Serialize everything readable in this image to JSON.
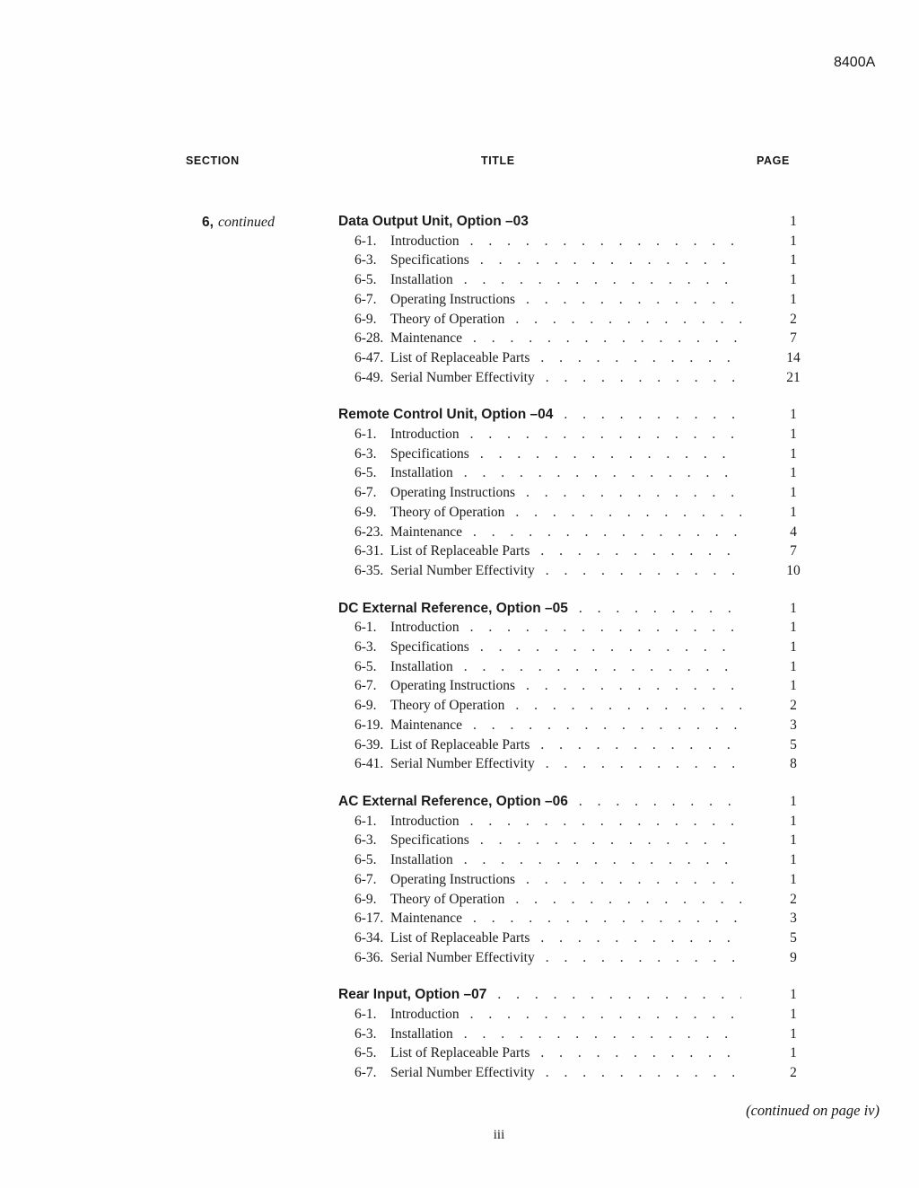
{
  "doc_number": "8400A",
  "headers": {
    "section": "SECTION",
    "title": "TITLE",
    "page": "PAGE"
  },
  "section_label": {
    "number": "6,",
    "note": "continued"
  },
  "blocks": [
    {
      "title": "Data Output Unit, Option –03",
      "title_page": "1",
      "title_dots": false,
      "entries": [
        {
          "num": "6-1.",
          "title": "Introduction",
          "page": "1"
        },
        {
          "num": "6-3.",
          "title": "Specifications",
          "page": "1"
        },
        {
          "num": "6-5.",
          "title": "Installation",
          "page": "1"
        },
        {
          "num": "6-7.",
          "title": "Operating Instructions",
          "page": "1"
        },
        {
          "num": "6-9.",
          "title": "Theory of Operation",
          "page": "2"
        },
        {
          "num": "6-28.",
          "title": "Maintenance",
          "page": "7"
        },
        {
          "num": "6-47.",
          "title": "List of Replaceable Parts",
          "page": "14"
        },
        {
          "num": "6-49.",
          "title": "Serial Number Effectivity",
          "page": "21"
        }
      ]
    },
    {
      "title": "Remote Control Unit, Option –04",
      "title_page": "1",
      "title_dots": true,
      "entries": [
        {
          "num": "6-1.",
          "title": "Introduction",
          "page": "1"
        },
        {
          "num": "6-3.",
          "title": "Specifications",
          "page": "1"
        },
        {
          "num": "6-5.",
          "title": "Installation",
          "page": "1"
        },
        {
          "num": "6-7.",
          "title": "Operating Instructions",
          "page": "1"
        },
        {
          "num": "6-9.",
          "title": "Theory of Operation",
          "page": "1"
        },
        {
          "num": "6-23.",
          "title": "Maintenance",
          "page": "4"
        },
        {
          "num": "6-31.",
          "title": "List of Replaceable Parts",
          "page": "7"
        },
        {
          "num": "6-35.",
          "title": "Serial Number Effectivity",
          "page": "10"
        }
      ]
    },
    {
      "title": "DC External Reference, Option –05",
      "title_page": "1",
      "title_dots": true,
      "entries": [
        {
          "num": "6-1.",
          "title": "Introduction",
          "page": "1"
        },
        {
          "num": "6-3.",
          "title": "Specifications",
          "page": "1"
        },
        {
          "num": "6-5.",
          "title": "Installation",
          "page": "1"
        },
        {
          "num": "6-7.",
          "title": "Operating Instructions",
          "page": "1"
        },
        {
          "num": "6-9.",
          "title": "Theory of Operation",
          "page": "2"
        },
        {
          "num": "6-19.",
          "title": "Maintenance",
          "page": "3"
        },
        {
          "num": "6-39.",
          "title": "List of Replaceable Parts",
          "page": "5"
        },
        {
          "num": "6-41.",
          "title": "Serial Number Effectivity",
          "page": "8"
        }
      ]
    },
    {
      "title": "AC External Reference, Option –06",
      "title_page": "1",
      "title_dots": true,
      "entries": [
        {
          "num": "6-1.",
          "title": "Introduction",
          "page": "1"
        },
        {
          "num": "6-3.",
          "title": "Specifications",
          "page": "1"
        },
        {
          "num": "6-5.",
          "title": "Installation",
          "page": "1"
        },
        {
          "num": "6-7.",
          "title": "Operating Instructions",
          "page": "1"
        },
        {
          "num": "6-9.",
          "title": "Theory of Operation",
          "page": "2"
        },
        {
          "num": "6-17.",
          "title": "Maintenance",
          "page": "3"
        },
        {
          "num": "6-34.",
          "title": "List of Replaceable Parts",
          "page": "5"
        },
        {
          "num": "6-36.",
          "title": "Serial Number Effectivity",
          "page": "9"
        }
      ]
    },
    {
      "title": "Rear Input, Option –07",
      "title_page": "1",
      "title_dots": true,
      "entries": [
        {
          "num": "6-1.",
          "title": "Introduction",
          "page": "1"
        },
        {
          "num": "6-3.",
          "title": "Installation",
          "page": "1"
        },
        {
          "num": "6-5.",
          "title": "List of Replaceable Parts",
          "page": "1"
        },
        {
          "num": "6-7.",
          "title": "Serial Number Effectivity",
          "page": "2"
        }
      ]
    }
  ],
  "footer": {
    "continued_note": "(continued on page iv)",
    "page_number": "iii"
  },
  "colors": {
    "paper": "#fefefe",
    "ink": "#1b1b1b"
  }
}
